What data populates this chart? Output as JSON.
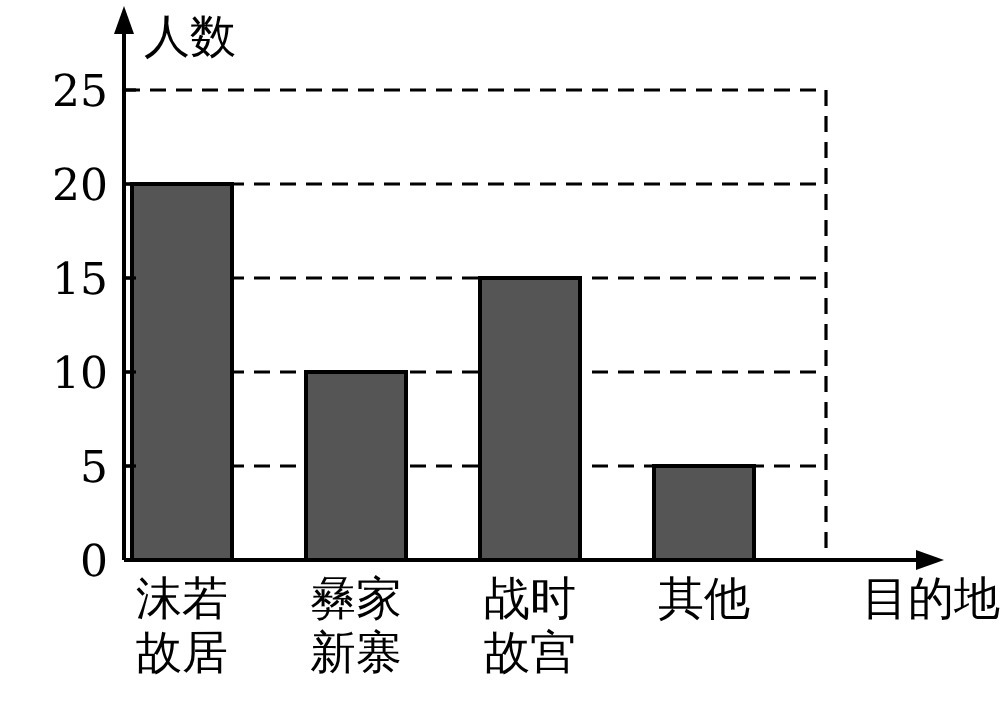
{
  "chart_data": {
    "type": "bar",
    "xlabel": "目的地",
    "ylabel": "人数",
    "categories": [
      "沫若故居",
      "彝家新寨",
      "战时故宫",
      "其他"
    ],
    "values": [
      20,
      10,
      15,
      5
    ],
    "color": "#555555",
    "ylim": [
      0,
      25
    ],
    "yticks": [
      0,
      5,
      10,
      15,
      20,
      25
    ],
    "grid": "y"
  }
}
